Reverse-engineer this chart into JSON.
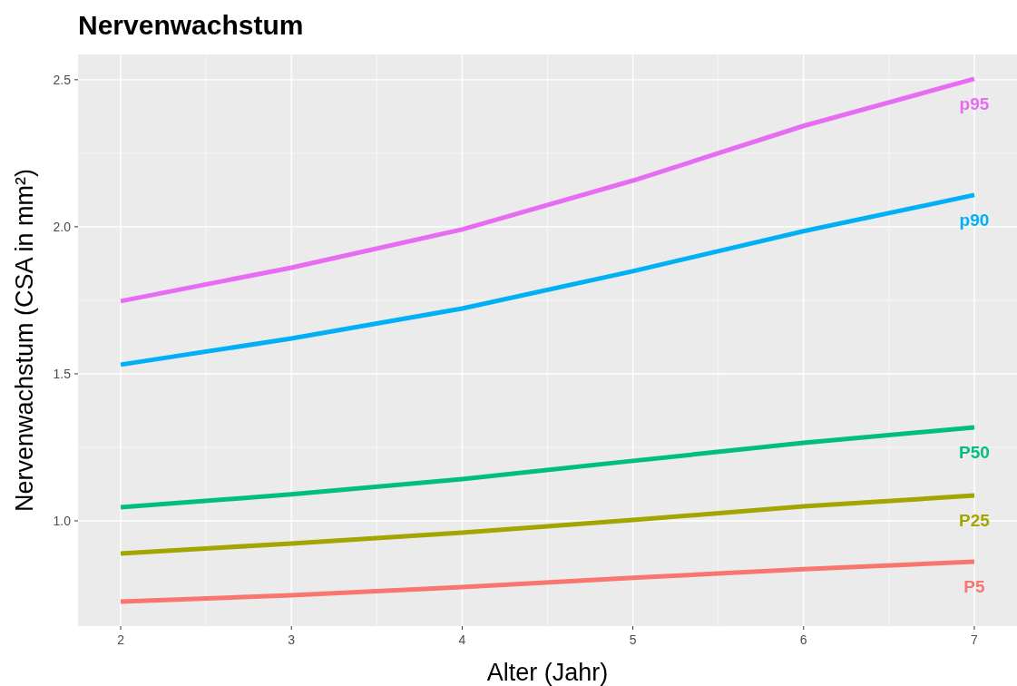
{
  "chart_data": {
    "type": "line",
    "title": "Nervenwachstum",
    "xlabel": "Alter (Jahr)",
    "ylabel": "Nervenwachstum (CSA in mm²)",
    "x": [
      2,
      3,
      4,
      5,
      6,
      7
    ],
    "series": [
      {
        "name": "P5",
        "color": "#f8766d",
        "values": [
          0.725,
          0.747,
          0.775,
          0.806,
          0.836,
          0.861
        ]
      },
      {
        "name": "P25",
        "color": "#a3a500",
        "values": [
          0.889,
          0.923,
          0.96,
          1.003,
          1.049,
          1.086
        ]
      },
      {
        "name": "P50",
        "color": "#00bf7d",
        "values": [
          1.046,
          1.09,
          1.142,
          1.204,
          1.265,
          1.318
        ]
      },
      {
        "name": "p90",
        "color": "#00b0f6",
        "values": [
          1.531,
          1.62,
          1.722,
          1.849,
          1.985,
          2.108
        ]
      },
      {
        "name": "p95",
        "color": "#e76bf3",
        "values": [
          1.747,
          1.861,
          1.991,
          2.157,
          2.343,
          2.503
        ]
      }
    ],
    "xlim": [
      1.75,
      7.25
    ],
    "ylim": [
      0.642,
      2.586
    ],
    "xticks": [
      2,
      3,
      4,
      5,
      6,
      7
    ],
    "yticks": [
      {
        "value": 1,
        "label": "1.0"
      },
      1.5,
      {
        "value": 2,
        "label": "2.0"
      },
      2.5
    ],
    "grid": true,
    "legend": false,
    "marker": "none",
    "line_style": "solid"
  }
}
